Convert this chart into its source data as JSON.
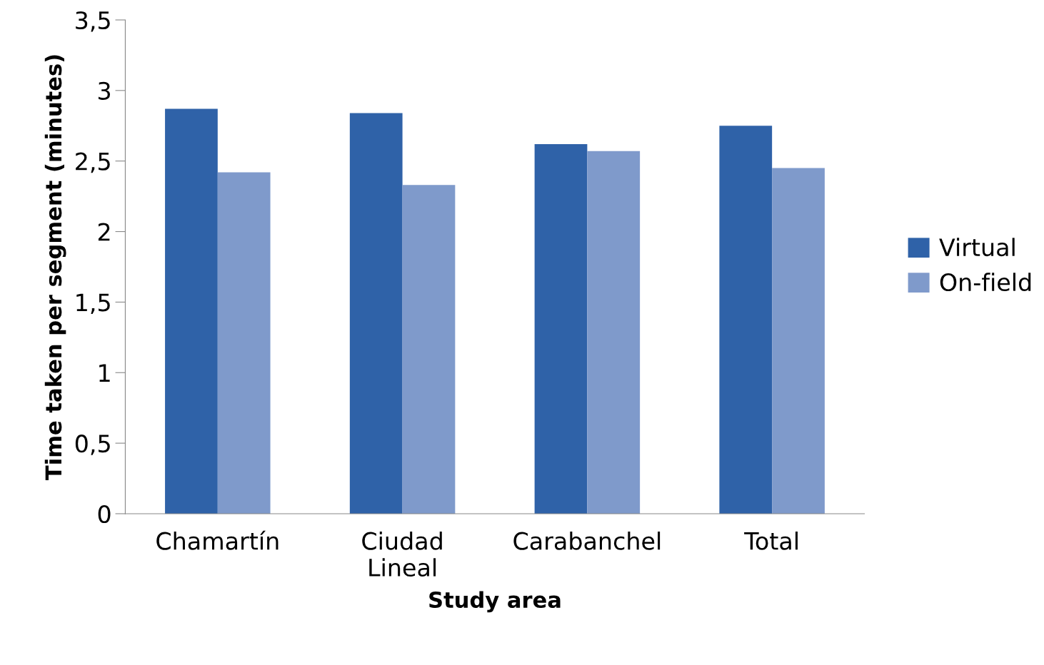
{
  "chart_data": {
    "type": "bar",
    "xlabel": "Study area",
    "ylabel": "Time taken per segment (minutes)",
    "categories": [
      "Chamartín",
      "Ciudad\nLineal",
      "Carabanchel",
      "Total"
    ],
    "series": [
      {
        "name": "Virtual",
        "color": "#2f62a8",
        "values": [
          2.87,
          2.84,
          2.62,
          2.75
        ]
      },
      {
        "name": "On-field",
        "color": "#7f9acb",
        "values": [
          2.42,
          2.33,
          2.57,
          2.45
        ]
      }
    ],
    "ylim": [
      0,
      3.5
    ],
    "yticks": [
      0,
      {
        "value": 0.5,
        "label": "0,5"
      },
      1,
      {
        "value": 1.5,
        "label": "1,5"
      },
      2,
      {
        "value": 2.5,
        "label": "2,5"
      },
      3,
      {
        "value": 3.5,
        "label": "3,5"
      }
    ],
    "grid": false,
    "legend": "right"
  }
}
